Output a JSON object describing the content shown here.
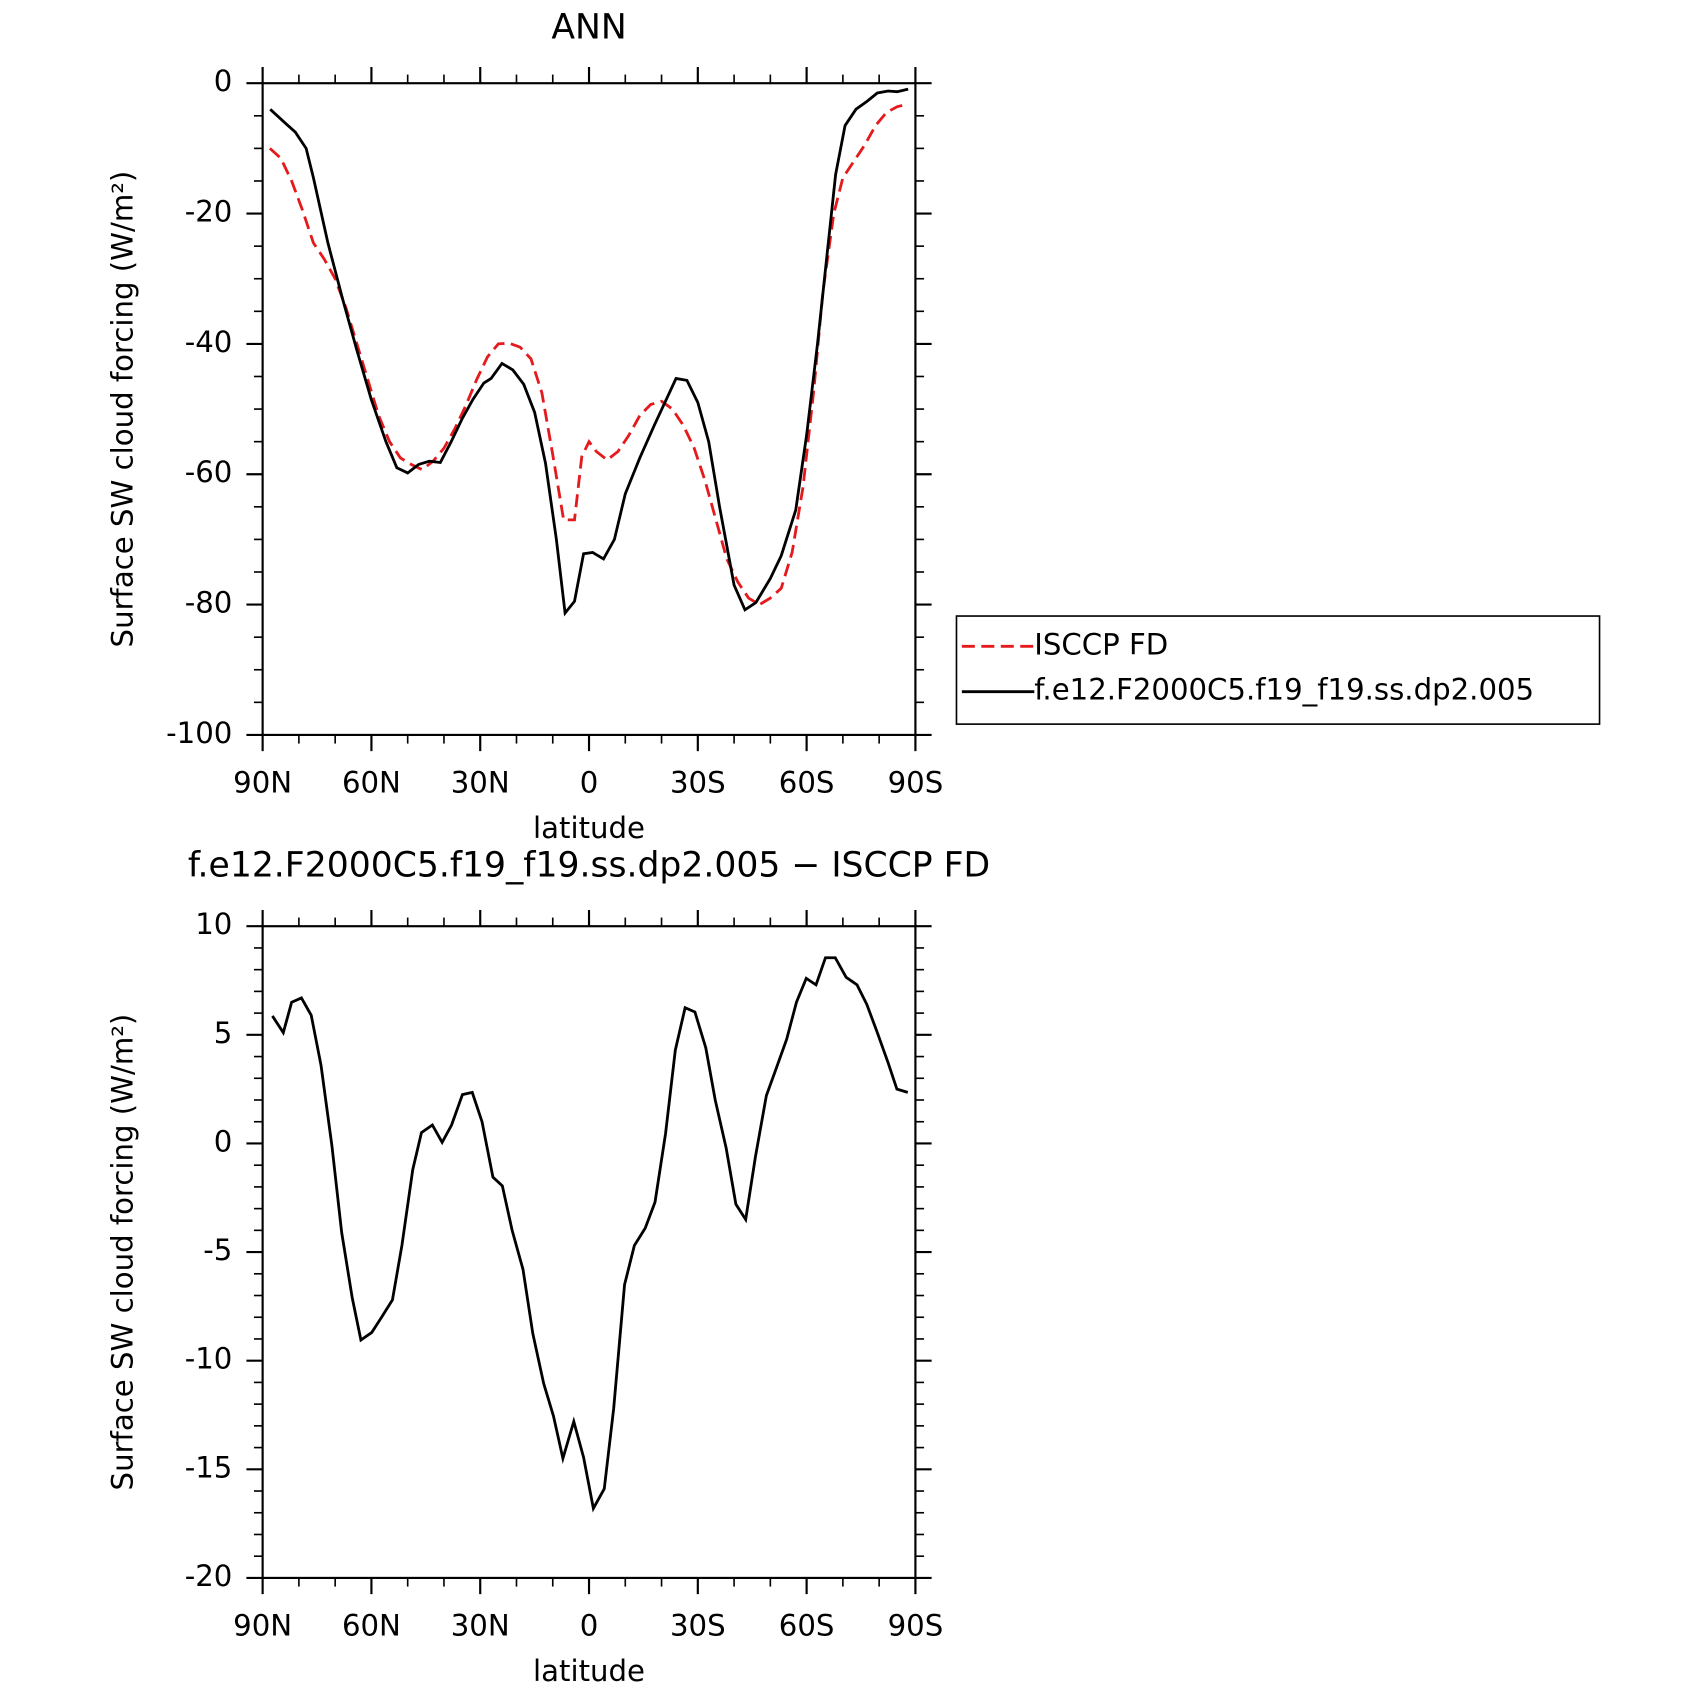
{
  "chart_data": [
    {
      "type": "line",
      "title": "ANN",
      "xlabel": "latitude",
      "ylabel": "Surface SW cloud forcing (W/m²)",
      "xlim": [
        90,
        -90
      ],
      "xticks": [
        {
          "value": 90,
          "label": "90N"
        },
        {
          "value": 60,
          "label": "60N"
        },
        {
          "value": 30,
          "label": "30N"
        },
        0,
        {
          "value": -30,
          "label": "30S"
        },
        {
          "value": -60,
          "label": "60S"
        },
        {
          "value": -90,
          "label": "90S"
        }
      ],
      "xminorticks": [
        80,
        70,
        50,
        40,
        20,
        10,
        -10,
        -20,
        -40,
        -50,
        -70,
        -80
      ],
      "ylim": [
        -100,
        0
      ],
      "yticks": [
        -100,
        -80,
        -60,
        -40,
        -20,
        0
      ],
      "yminorticks": [
        -95,
        -90,
        -85,
        -75,
        -70,
        -65,
        -55,
        -50,
        -45,
        -35,
        -30,
        -25,
        -15,
        -10,
        -5
      ],
      "legend": "right",
      "series": [
        {
          "name": "ISCCP FD",
          "color": "#e41a1c",
          "dash": true,
          "x": [
            88,
            85,
            82,
            79,
            76,
            73,
            70,
            67,
            64,
            61,
            58,
            55,
            52,
            49,
            46,
            43,
            40,
            37,
            34,
            31,
            28,
            25,
            22,
            19,
            16,
            13,
            10,
            7,
            4,
            2,
            0,
            -2,
            -5,
            -8,
            -11,
            -14,
            -17,
            -20,
            -23,
            -26,
            -29,
            -32,
            -35,
            -38,
            -41,
            -44,
            -47,
            -50,
            -53,
            -56,
            -59,
            -62,
            -64.5,
            -67.5,
            -70,
            -73,
            -76,
            -79,
            -82,
            -85,
            -88
          ],
          "values": [
            -10,
            -11.5,
            -15,
            -19.5,
            -24.5,
            -27,
            -30,
            -34.5,
            -40,
            -45.5,
            -51,
            -55,
            -57.5,
            -58.5,
            -59.3,
            -58,
            -56,
            -53,
            -49.5,
            -45.5,
            -42,
            -40,
            -39.9,
            -40.5,
            -42.3,
            -47.5,
            -57,
            -67,
            -67,
            -57.3,
            -55,
            -56.5,
            -57.8,
            -56.5,
            -54,
            -51,
            -49.3,
            -48.8,
            -50,
            -52.5,
            -56,
            -61,
            -67,
            -73,
            -76.5,
            -79,
            -80,
            -79,
            -77.5,
            -72,
            -62,
            -47,
            -32,
            -20,
            -14.5,
            -12,
            -9.5,
            -6.5,
            -4.5,
            -3.6,
            -3.2
          ]
        },
        {
          "name": "f.e12.F2000C5.f19_f19.ss.dp2.005",
          "color": "#000000",
          "dash": false,
          "x": [
            87.9,
            84,
            81,
            78,
            76,
            72,
            68,
            64,
            60,
            56,
            53,
            50,
            47,
            44,
            41,
            38,
            35,
            32,
            29,
            27,
            24,
            21,
            18,
            15,
            12,
            9,
            6.6,
            4,
            1.5,
            -1,
            -4,
            -7,
            -10,
            -14,
            -18,
            -24,
            -27,
            -30,
            -33,
            -36,
            -40,
            -43,
            -46,
            -50,
            -53,
            -57,
            -60,
            -63,
            -65.5,
            -68,
            -70.6,
            -73.6,
            -76.6,
            -79.5,
            -82.5,
            -85,
            -88
          ],
          "values": [
            -4,
            -6,
            -7.5,
            -10,
            -14.5,
            -24.5,
            -33,
            -41,
            -48.6,
            -55,
            -59,
            -59.8,
            -58.5,
            -58,
            -58.2,
            -55,
            -51.5,
            -48.5,
            -46,
            -45.3,
            -43,
            -44,
            -46.2,
            -50.5,
            -58.3,
            -70,
            -81.3,
            -79.5,
            -72.2,
            -72,
            -73,
            -70,
            -63,
            -57.5,
            -52.5,
            -45.3,
            -45.6,
            -49,
            -55,
            -65,
            -77,
            -80.8,
            -79.7,
            -76,
            -72.5,
            -65.5,
            -54,
            -40,
            -27,
            -14,
            -6.5,
            -4,
            -2.8,
            -1.5,
            -1.2,
            -1.3,
            -0.9
          ]
        }
      ]
    },
    {
      "type": "line",
      "title": "f.e12.F2000C5.f19_f19.ss.dp2.005 − ISCCP FD",
      "xlabel": "latitude",
      "ylabel": "Surface SW cloud forcing (W/m²)",
      "xlim": [
        90,
        -90
      ],
      "xticks": [
        {
          "value": 90,
          "label": "90N"
        },
        {
          "value": 60,
          "label": "60N"
        },
        {
          "value": 30,
          "label": "30N"
        },
        0,
        {
          "value": -30,
          "label": "30S"
        },
        {
          "value": -60,
          "label": "60S"
        },
        {
          "value": -90,
          "label": "90S"
        }
      ],
      "xminorticks": [
        80,
        70,
        50,
        40,
        20,
        10,
        -10,
        -20,
        -40,
        -50,
        -70,
        -80
      ],
      "ylim": [
        -20,
        10
      ],
      "yticks": [
        -20,
        -15,
        -10,
        -5,
        0,
        5,
        10
      ],
      "yminorticks": [
        -19,
        -18,
        -17,
        -16,
        -14,
        -13,
        -12,
        -11,
        -9,
        -8,
        -7,
        -6,
        -4,
        -3,
        -2,
        -1,
        1,
        2,
        3,
        4,
        6,
        7,
        8,
        9
      ],
      "series": [
        {
          "color": "#000000",
          "dash": false,
          "x": [
            87.3,
            84.3,
            82,
            79.3,
            76.6,
            73.9,
            70.9,
            68.2,
            65.3,
            62.9,
            59.9,
            57.2,
            54.2,
            51.6,
            48.6,
            46.2,
            43.2,
            40.5,
            37.9,
            34.9,
            32.2,
            29.5,
            26.5,
            23.9,
            21.2,
            18.2,
            15.5,
            12.5,
            9.8,
            7.2,
            4.2,
            1.5,
            -1.2,
            -4.2,
            -6.8,
            -9.8,
            -12.5,
            -15.5,
            -18.2,
            -21.1,
            -23.8,
            -26.5,
            -29.2,
            -32.2,
            -34.8,
            -37.8,
            -40.5,
            -43.2,
            -45.9,
            -48.9,
            -51.5,
            -54.5,
            -57.2,
            -59.9,
            -62.6,
            -65.2,
            -67.9,
            -70.9,
            -73.9,
            -76.6,
            -79.5,
            -82.5,
            -84.9,
            -87.9
          ],
          "values": [
            5.87,
            5.1,
            6.5,
            6.7,
            5.9,
            3.6,
            -0.1,
            -4.1,
            -7.1,
            -9.05,
            -8.7,
            -8,
            -7.2,
            -4.7,
            -1.2,
            0.5,
            0.85,
            0.05,
            0.85,
            2.25,
            2.35,
            1,
            -1.55,
            -1.95,
            -4,
            -5.8,
            -8.75,
            -11.05,
            -12.55,
            -14.5,
            -12.8,
            -14.45,
            -16.8,
            -15.9,
            -12.2,
            -6.5,
            -4.7,
            -3.9,
            -2.7,
            0.45,
            4.3,
            6.25,
            6.05,
            4.4,
            2,
            -0.2,
            -2.8,
            -3.5,
            -0.6,
            2.2,
            3.4,
            4.8,
            6.5,
            7.6,
            7.3,
            8.55,
            8.55,
            7.65,
            7.3,
            6.4,
            5.1,
            3.7,
            2.5,
            2.35
          ]
        }
      ]
    }
  ]
}
